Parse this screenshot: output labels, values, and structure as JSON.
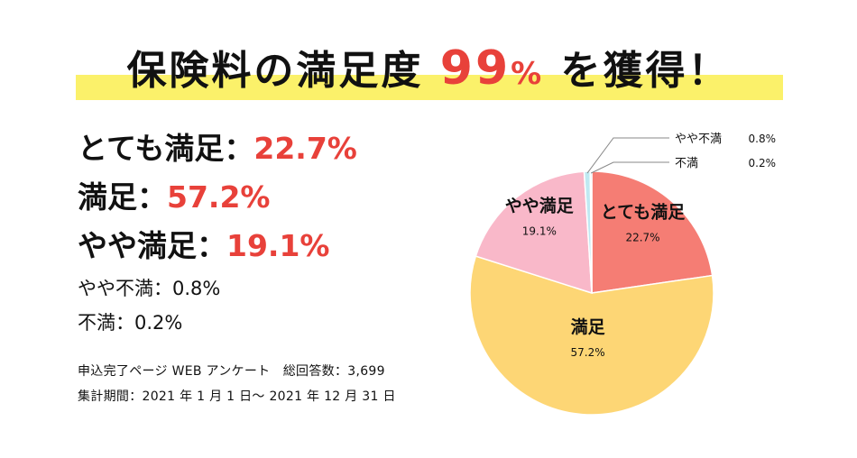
{
  "headline": {
    "prefix": "保険料の満足度",
    "number": "99",
    "percent_sign": "%",
    "suffix": "を獲得！",
    "band_color": "#fbf16a",
    "accent_color": "#e8413a"
  },
  "breakdown": {
    "major": [
      {
        "label": "とても満足：",
        "value": "22.7%"
      },
      {
        "label": "満足：",
        "value": "57.2%"
      },
      {
        "label": "やや満足：",
        "value": "19.1%"
      }
    ],
    "minor": [
      {
        "label": "やや不満：",
        "value": "0.8%"
      },
      {
        "label": "不満：",
        "value": "0.2%"
      }
    ]
  },
  "notes": {
    "survey": "申込完了ページ WEB アンケート　総回答数：3,699",
    "period": "集計期間：2021 年 1 月 1 日〜 2021 年 12 月 31 日"
  },
  "chart_data": {
    "type": "pie",
    "start": "12 o'clock, clockwise",
    "slices": [
      {
        "label": "とても満足",
        "value": 22.7,
        "display": "22.7%",
        "color": "#f57d74"
      },
      {
        "label": "満足",
        "value": 57.2,
        "display": "57.2%",
        "color": "#fdd675"
      },
      {
        "label": "やや満足",
        "value": 19.1,
        "display": "19.1%",
        "color": "#f9b8c9"
      },
      {
        "label": "やや不満",
        "value": 0.8,
        "display": "0.8%",
        "color": "#bfe9f2"
      },
      {
        "label": "不満",
        "value": 0.2,
        "display": "0.2%",
        "color": "#8fd3ea"
      }
    ],
    "callouts": [
      {
        "label": "やや不満",
        "value": "0.8%"
      },
      {
        "label": "不満",
        "value": "0.2%"
      }
    ]
  }
}
